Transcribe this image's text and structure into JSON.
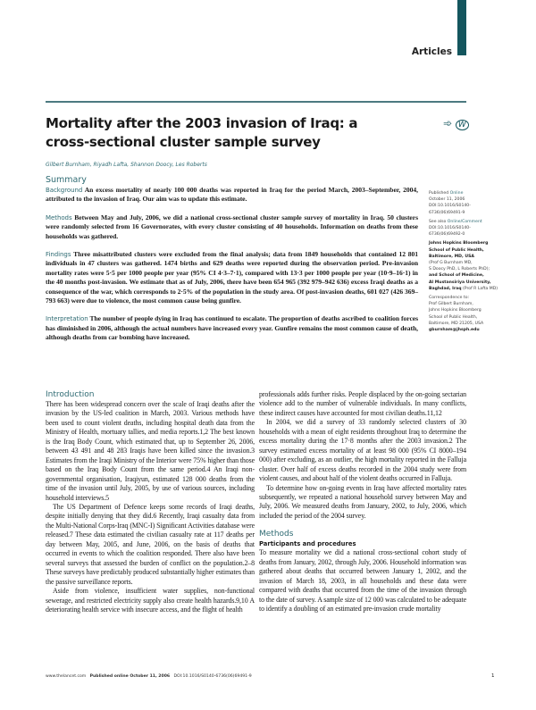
{
  "header": {
    "section": "Articles",
    "accent_color": "#14565e"
  },
  "article": {
    "title": "Mortality after the 2003 invasion of Iraq: a cross-sectional cluster sample survey",
    "icons": [
      "arrow-icon",
      "w-circle-icon"
    ],
    "authors": "Gilbert Burnham, Riyadh Lafta, Shannon Doocy, Les Roberts"
  },
  "summary": {
    "heading": "Summary",
    "background_label": "Background",
    "background": "An excess mortality of nearly 100 000 deaths was reported in Iraq for the period March, 2003–September, 2004, attributed to the invasion of Iraq. Our aim was to update this estimate.",
    "methods_label": "Methods",
    "methods": "Between May and July, 2006, we did a national cross-sectional cluster sample survey of mortality in Iraq. 50 clusters were randomly selected from 16 Governorates, with every cluster consisting of 40 households. Information on deaths from these households was gathered.",
    "findings_label": "Findings",
    "findings": "Three misattributed clusters were excluded from the final analysis; data from 1849 households that contained 12 801 individuals in 47 clusters was gathered. 1474 births and 629 deaths were reported during the observation period. Pre-invasion mortality rates were 5·5 per 1000 people per year (95% CI 4·3–7·1), compared with 13·3 per 1000 people per year (10·9–16·1) in the 40 months post-invasion. We estimate that as of July, 2006, there have been 654 965 (392 979–942 636) excess Iraqi deaths as a consequence of the war, which corresponds to 2·5% of the population in the study area. Of post-invasion deaths, 601 027 (426 369–793 663) were due to violence, the most common cause being gunfire.",
    "interpretation_label": "Interpretation",
    "interpretation": "The number of people dying in Iraq has continued to escalate. The proportion of deaths ascribed to coalition forces has diminished in 2006, although the actual numbers have increased every year. Gunfire remains the most common cause of death, although deaths from car bombing have increased."
  },
  "sidebar": {
    "published_a": "Published ",
    "published_b": "Online",
    "published_date": "October 11, 2006",
    "published_doi1": "DOI:10.1016/S0140-",
    "published_doi2": "6736(06)69491-9",
    "see_also_a": "See also ",
    "see_also_b": "Online/Comment",
    "see_doi1": "DOI:10.1016/S0140-",
    "see_doi2": "6736(06)69492-0",
    "aff1": "Johns Hopkins Bloomberg",
    "aff2": "School of Public Health,",
    "aff3": "Baltimore, MD, USA",
    "aff4": "(Prof G Burnham MD,",
    "aff5": "S Doocy PhD, L Roberts PhD);",
    "aff6": "and School of Medicine,",
    "aff7": "Al Mustansiriya University,",
    "aff8": "Baghdad, Iraq",
    "aff9": " (Prof R Lafta MD)",
    "corr1": "Correspondence to:",
    "corr2": "Prof Gilbert Burnham,",
    "corr3": "Johns Hopkins Bloomberg",
    "corr4": "School of Public Health,",
    "corr5": "Baltimore, MD 21205, USA",
    "corr6": "gburnham@jhsph.edu"
  },
  "body": {
    "intro_heading": "Introduction",
    "left_p1": "There has been widespread concern over the scale of Iraqi deaths after the invasion by the US-led coalition in March, 2003. Various methods have been used to count violent deaths, including hospital death data from the Ministry of Health, mortuary tallies, and media reports.1,2 The best known is the Iraq Body Count, which estimated that, up to September 26, 2006, between 43 491 and 48 283 Iraqis have been killed since the invasion.3 Estimates from the Iraqi Ministry of the Interior were 75% higher than those based on the Iraq Body Count from the same period.4 An Iraqi non-governmental organisation, Iraqiyun, estimated 128 000 deaths from the time of the invasion until July, 2005, by use of various sources, including household interviews.5",
    "left_p2": "The US Department of Defence keeps some records of Iraqi deaths, despite initially denying that they did.6 Recently, Iraqi casualty data from the Multi-National Corps-Iraq (MNC-I) Significant Activities database were released.7 These data estimated the civilian casualty rate at 117 deaths per day between May, 2005, and June, 2006, on the basis of deaths that occurred in events to which the coalition responded. There also have been several surveys that assessed the burden of conflict on the population.2–8 These surveys have predictably produced substantially higher estimates than the passive surveillance reports.",
    "left_p3": "Aside from violence, insufficient water supplies, non-functional sewerage, and restricted electricity supply also create health hazards.9,10 A deteriorating health service with insecure access, and the flight of health",
    "right_p1": "professionals adds further risks. People displaced by the on-going sectarian violence add to the number of vulnerable individuals. In many conflicts, these indirect causes have accounted for most civilian deaths.11,12",
    "right_p2": "In 2004, we did a survey of 33 randomly selected clusters of 30 households with a mean of eight residents throughout Iraq to determine the excess mortality during the 17·8 months after the 2003 invasion.2 The survey estimated excess mortality of at least 98 000 (95% CI 8000–194 000) after excluding, as an outlier, the high mortality reported in the Falluja cluster. Over half of excess deaths recorded in the 2004 study were from violent causes, and about half of the violent deaths occurred in Falluja.",
    "right_p3": "To determine how on-going events in Iraq have affected mortality rates subsequently, we repeated a national household survey between May and July, 2006. We measured deaths from January, 2002, to July, 2006, which included the period of the 2004 survey.",
    "methods_heading": "Methods",
    "participants_heading": "Participants and procedures",
    "right_p4": "To measure mortality we did a national cross-sectional cohort study of deaths from January, 2002, through July, 2006. Household information was gathered about deaths that occurred between January 1, 2002, and the invasion of March 18, 2003, in all households and these data were compared with deaths that occurred from the time of the invasion through to the date of survey. A sample size of 12 000 was calculated to be adequate to identify a doubling of an estimated pre-invasion crude mortality"
  },
  "footer": {
    "site": "www.thelancet.com",
    "published": "Published online October 11, 2006",
    "doi": "DOI:10.1016/S0140-6736(06)69491-9",
    "page": "1"
  }
}
